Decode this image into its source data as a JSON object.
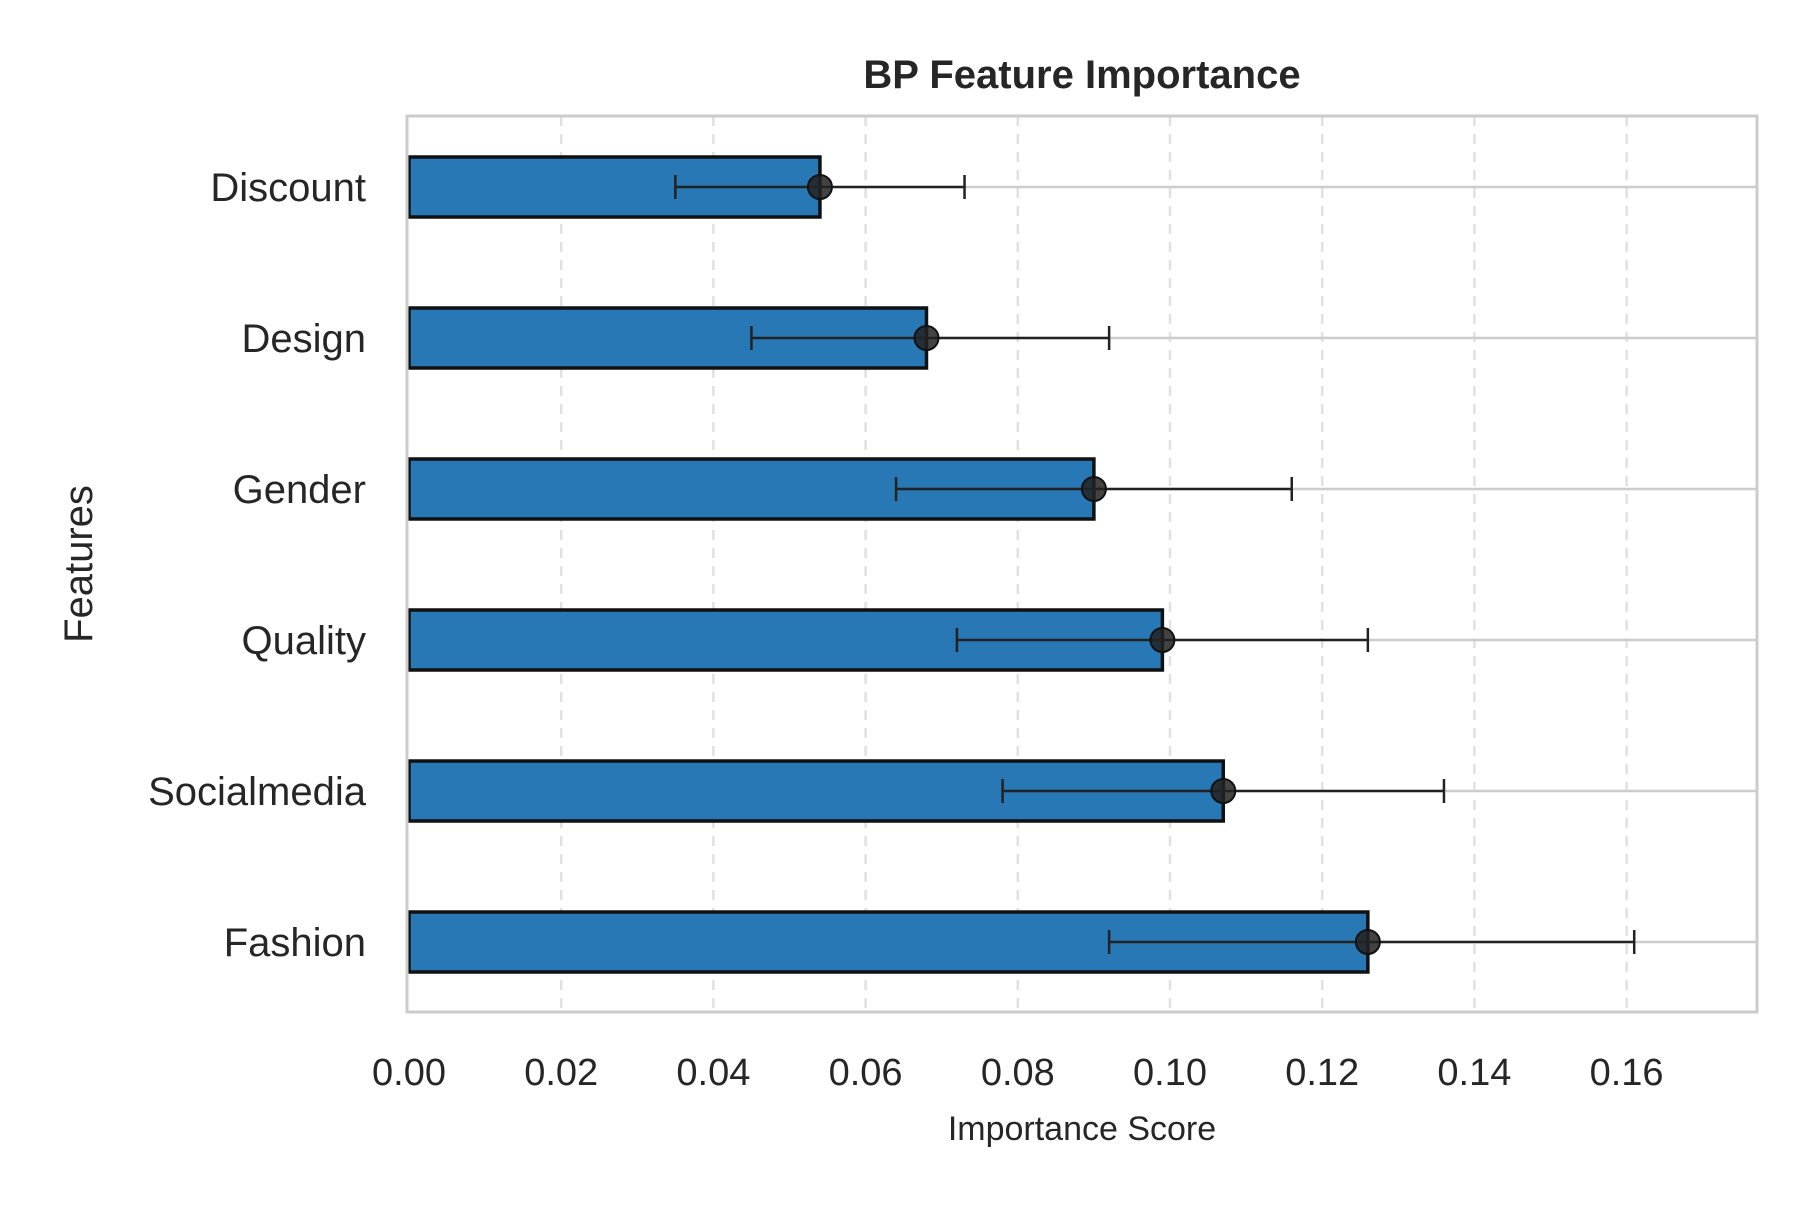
{
  "chart_data": {
    "type": "bar",
    "orientation": "horizontal",
    "title": "BP Feature Importance",
    "xlabel": "Importance Score",
    "ylabel": "Features",
    "categories": [
      "Discount",
      "Design",
      "Gender",
      "Quality",
      "Socialmedia",
      "Fashion"
    ],
    "values": [
      0.054,
      0.068,
      0.09,
      0.099,
      0.107,
      0.126
    ],
    "error_low": [
      0.035,
      0.045,
      0.064,
      0.072,
      0.078,
      0.092
    ],
    "error_high": [
      0.073,
      0.092,
      0.116,
      0.126,
      0.136,
      0.161
    ],
    "xlim": [
      0,
      0.178
    ],
    "xticks": [
      "0.00",
      "0.02",
      "0.04",
      "0.06",
      "0.08",
      "0.10",
      "0.12",
      "0.14",
      "0.16"
    ],
    "grid": true,
    "legend": "none",
    "colors": {
      "bar": "#2878b5",
      "bar_edge": "#111111",
      "error": "#222222",
      "grid": "#e1e1e1",
      "frame": "#cccccc"
    }
  }
}
